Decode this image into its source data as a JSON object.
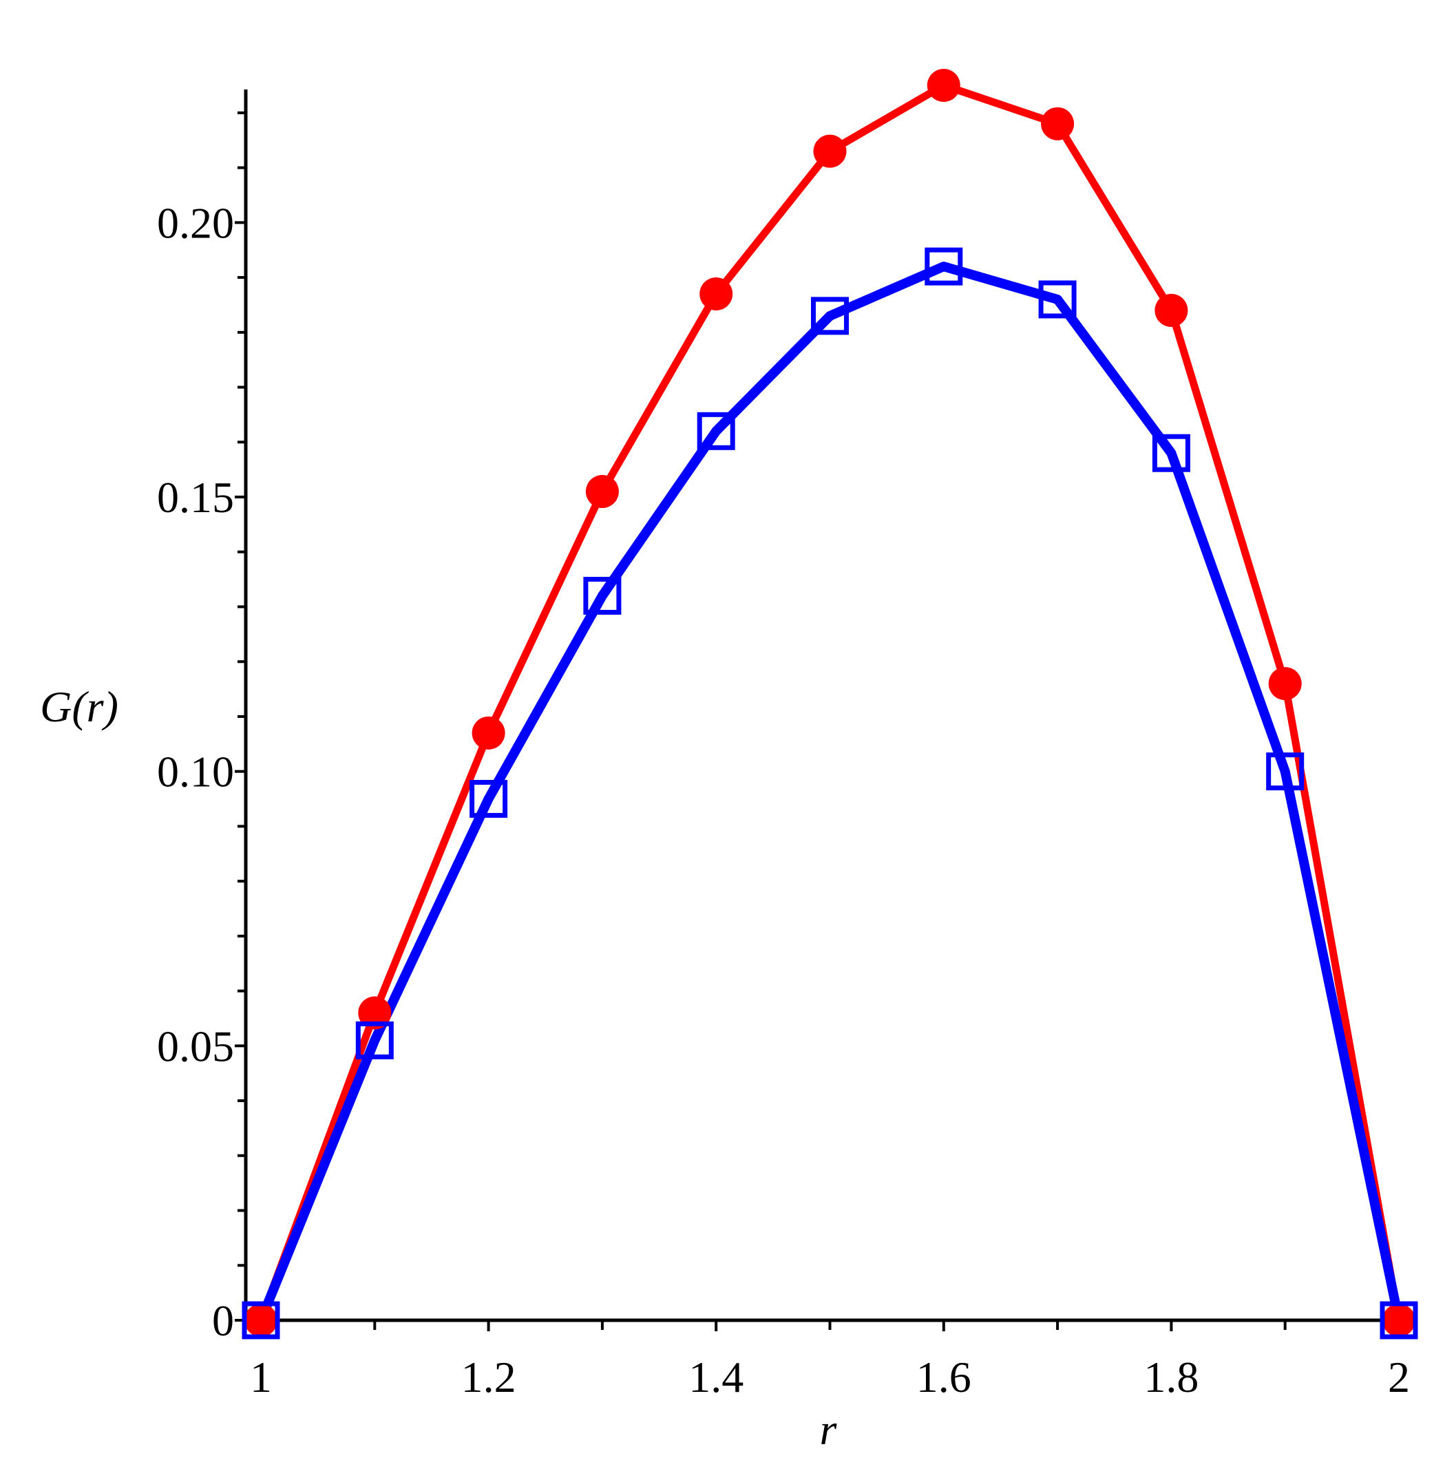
{
  "chart_data": {
    "type": "line",
    "xlabel": "r",
    "ylabel": "G(r)",
    "xlim": [
      1,
      2
    ],
    "ylim": [
      0,
      0.225
    ],
    "x_ticks": [
      1,
      1.2,
      1.4,
      1.6,
      1.8,
      2
    ],
    "x_tick_labels": [
      "1",
      "1.2",
      "1.4",
      "1.6",
      "1.8",
      "2"
    ],
    "y_ticks": [
      0,
      0.05,
      0.1,
      0.15,
      0.2
    ],
    "y_tick_labels": [
      "0",
      "0.05",
      "0.10",
      "0.15",
      "0.20"
    ],
    "x": [
      1.0,
      1.1,
      1.2,
      1.3,
      1.4,
      1.5,
      1.6,
      1.7,
      1.8,
      1.9,
      2.0
    ],
    "series": [
      {
        "color": "#ff0000",
        "marker": "filled-circle",
        "values": [
          0,
          0.056,
          0.107,
          0.151,
          0.187,
          0.213,
          0.225,
          0.218,
          0.184,
          0.116,
          0
        ]
      },
      {
        "color": "#0000ff",
        "marker": "open-square",
        "values": [
          0,
          0.051,
          0.095,
          0.132,
          0.162,
          0.183,
          0.192,
          0.186,
          0.158,
          0.1,
          0
        ]
      }
    ],
    "grid": false,
    "legend": "none"
  }
}
